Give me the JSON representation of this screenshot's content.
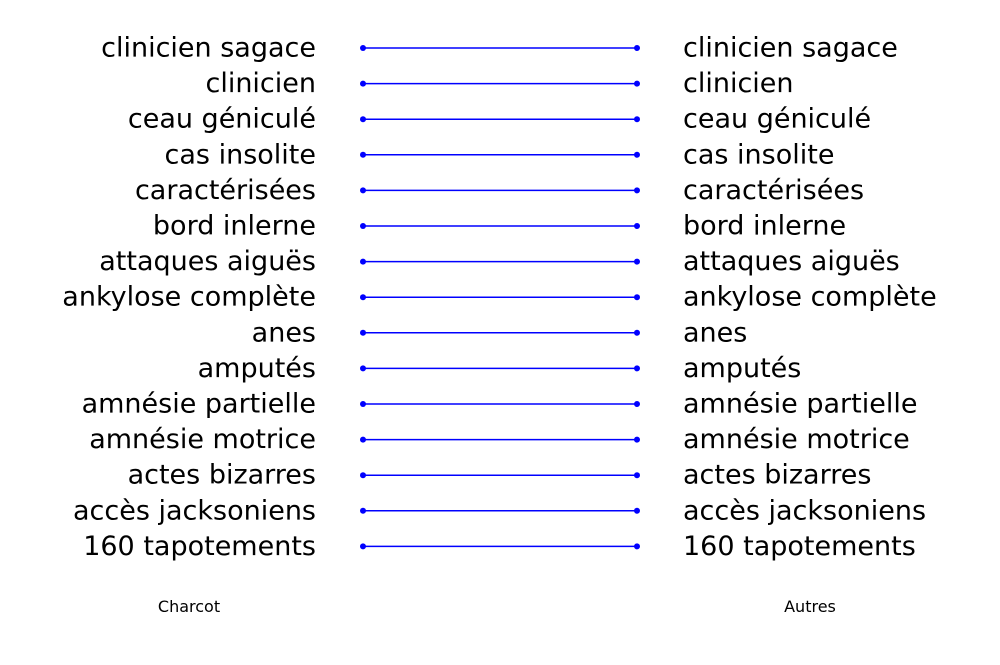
{
  "left_column_label": "Charcot",
  "right_column_label": "Autres",
  "line_color": "#0000ff",
  "text_color": "#000000",
  "pairs": [
    {
      "left": "clinicien sagace",
      "right": "clinicien sagace"
    },
    {
      "left": "clinicien",
      "right": "clinicien"
    },
    {
      "left": "ceau géniculé",
      "right": "ceau géniculé"
    },
    {
      "left": "cas insolite",
      "right": "cas insolite"
    },
    {
      "left": "caractérisées",
      "right": "caractérisées"
    },
    {
      "left": "bord inlerne",
      "right": "bord inlerne"
    },
    {
      "left": "attaques aiguës",
      "right": "attaques aiguës"
    },
    {
      "left": "ankylose complète",
      "right": "ankylose complète"
    },
    {
      "left": "anes",
      "right": "anes"
    },
    {
      "left": "amputés",
      "right": "amputés"
    },
    {
      "left": "amnésie partielle",
      "right": "amnésie partielle"
    },
    {
      "left": "amnésie motrice",
      "right": "amnésie motrice"
    },
    {
      "left": "actes bizarres",
      "right": "actes bizarres"
    },
    {
      "left": "accès jacksoniens",
      "right": "accès jacksoniens"
    },
    {
      "left": "160 tapotements",
      "right": "160 tapotements"
    }
  ]
}
